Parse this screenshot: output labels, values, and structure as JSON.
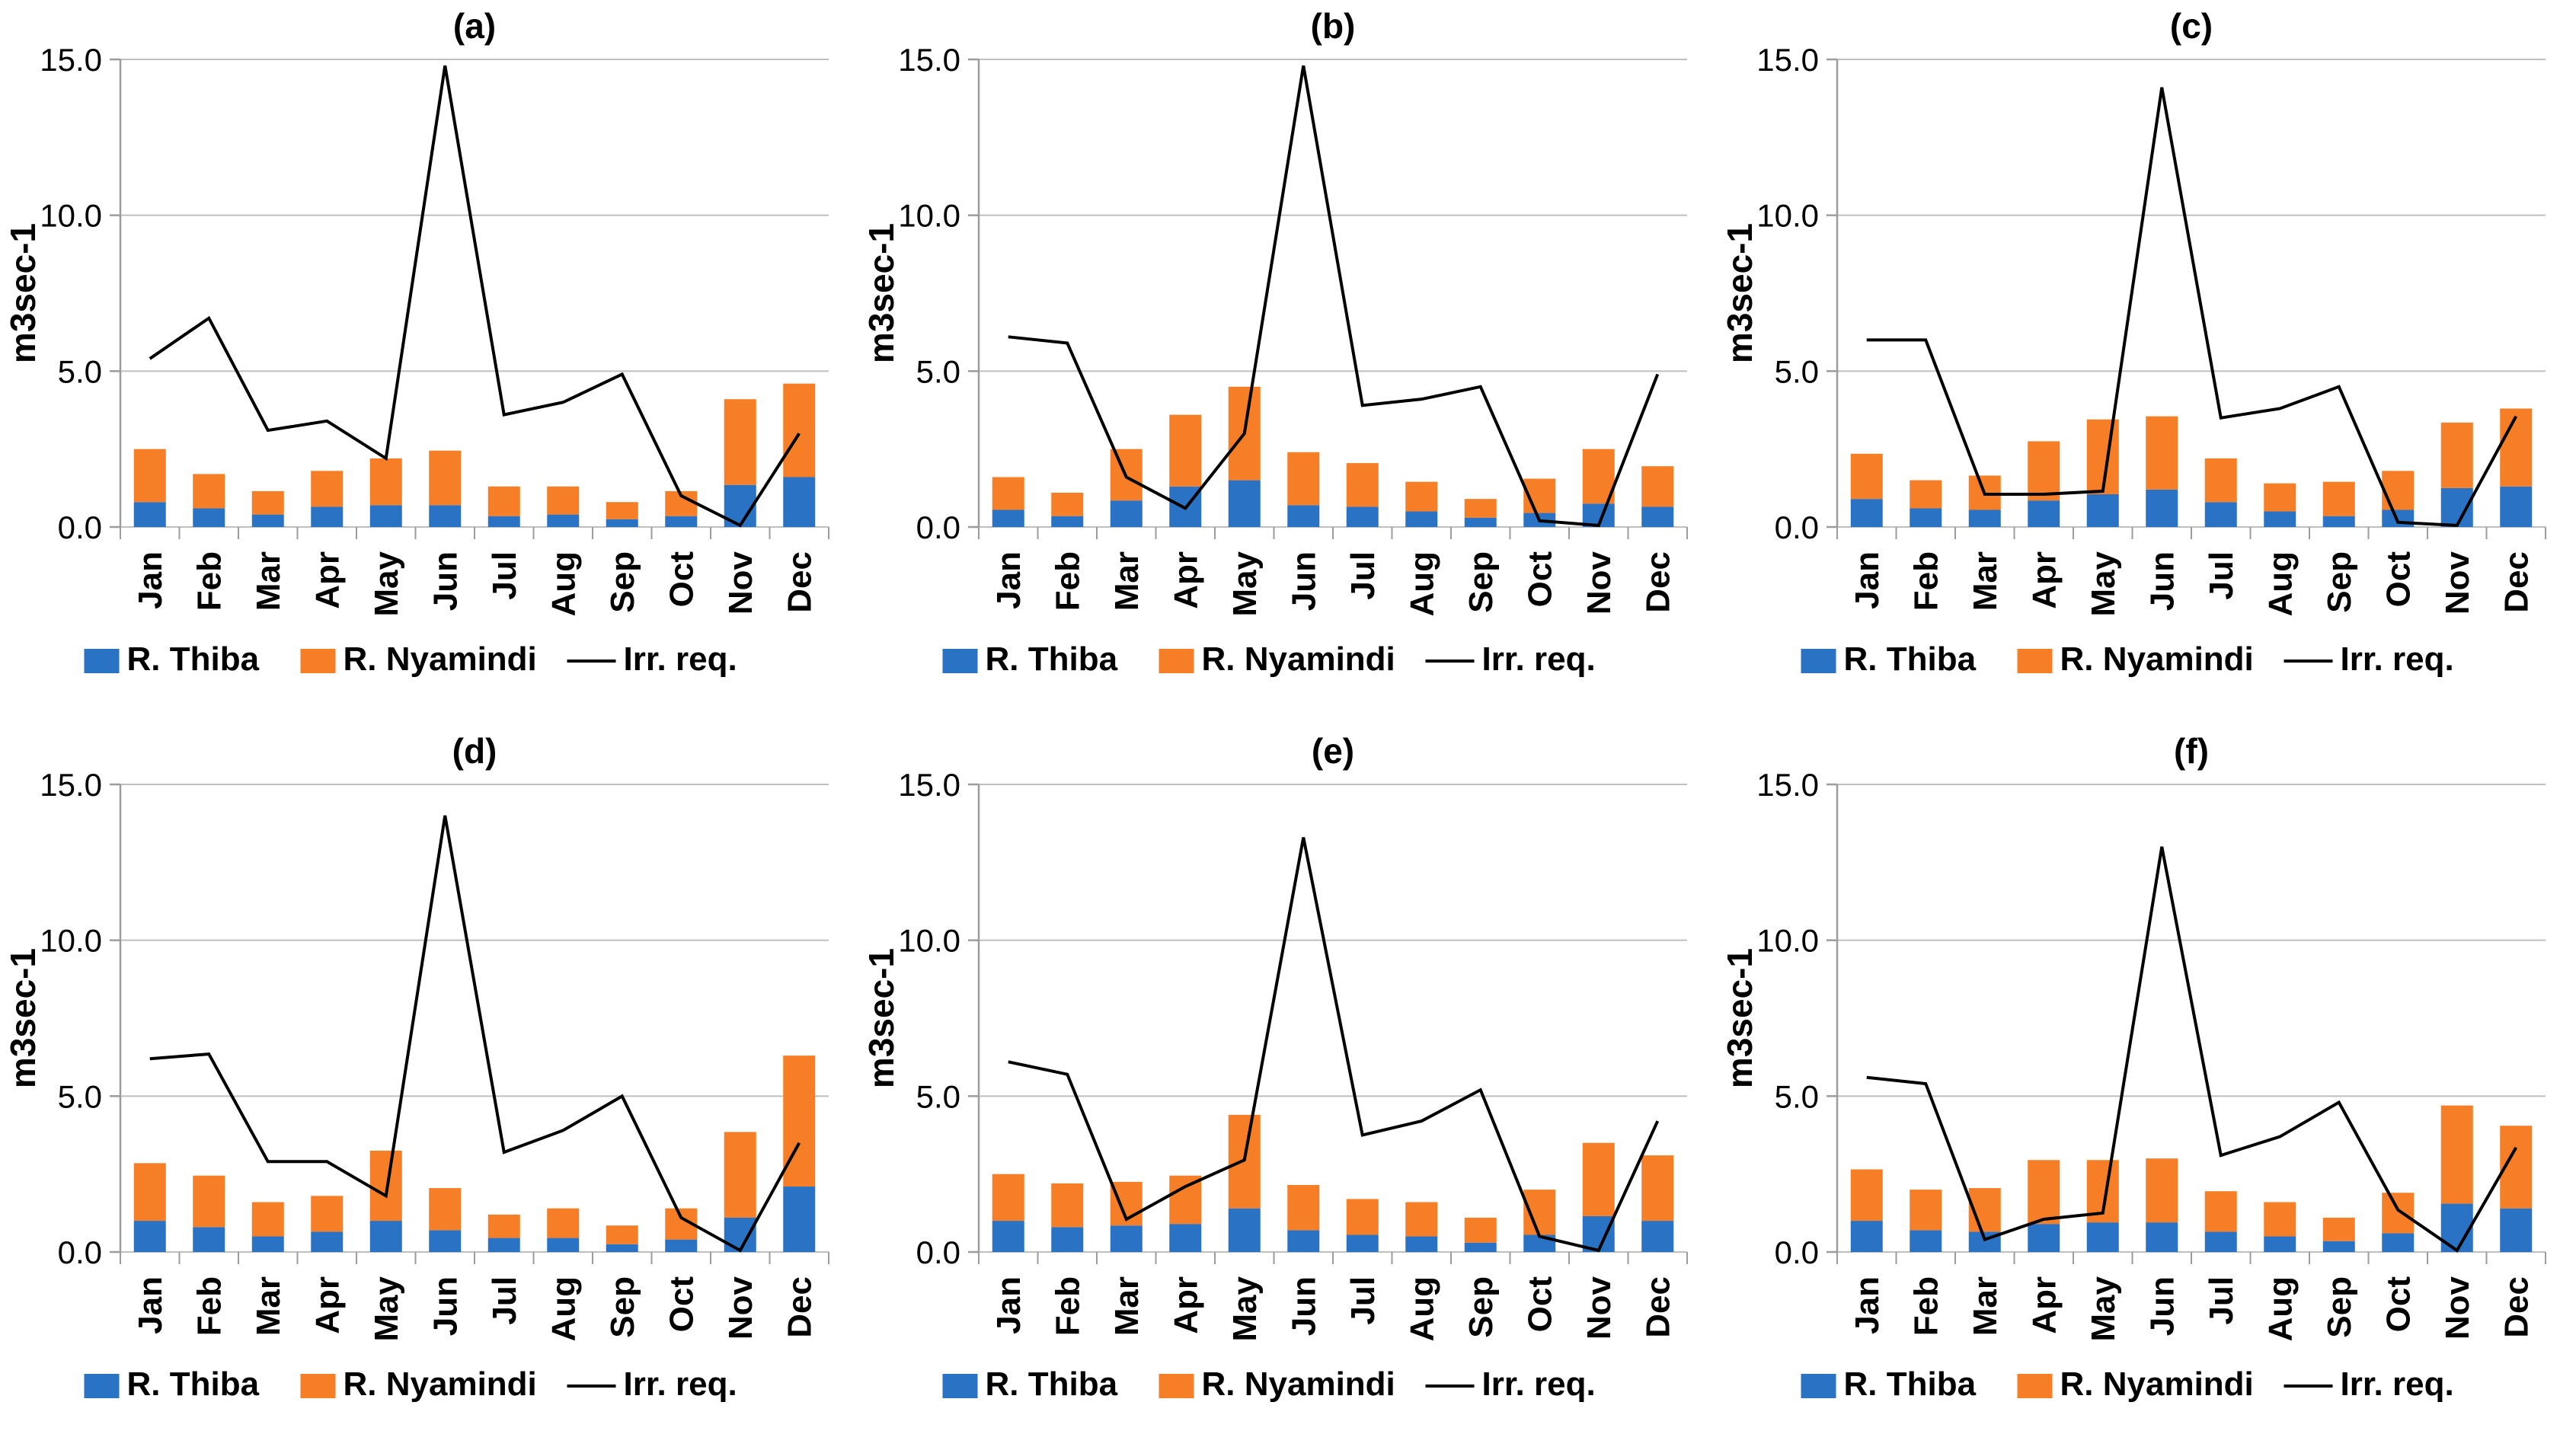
{
  "figure": {
    "background": "#ffffff",
    "ylabel": "m3sec-1",
    "y_tick_labels": [
      "0.0",
      "5.0",
      "10.0",
      "15.0"
    ],
    "y_ticks": [
      0,
      5,
      10,
      15
    ],
    "ylim": [
      0,
      15
    ],
    "categories": [
      "Jan",
      "Feb",
      "Mar",
      "Apr",
      "May",
      "Jun",
      "Jul",
      "Aug",
      "Sep",
      "Oct",
      "Nov",
      "Dec"
    ],
    "legend": {
      "thiba_label": "R. Thiba",
      "nyamindi_label": "R. Nyamindi",
      "irr_label": "Irr. req."
    },
    "colors": {
      "thiba": "#2A72C3",
      "nyamindi": "#F57E27",
      "irr_line": "#000000",
      "grid": "#BFBFBF",
      "axis": "#9c9c9c",
      "text": "#000000"
    }
  },
  "chart_data": [
    {
      "type": "bar+line",
      "title": "(a)",
      "categories": [
        "Jan",
        "Feb",
        "Mar",
        "Apr",
        "May",
        "Jun",
        "Jul",
        "Aug",
        "Sep",
        "Oct",
        "Nov",
        "Dec"
      ],
      "xlabel": "",
      "ylabel": "m3sec-1",
      "ylim": [
        0,
        15
      ],
      "grid": true,
      "legend_position": "bottom",
      "series": [
        {
          "name": "R. Thiba",
          "kind": "stacked-bar",
          "values": [
            0.8,
            0.6,
            0.4,
            0.65,
            0.7,
            0.7,
            0.35,
            0.4,
            0.25,
            0.35,
            1.35,
            1.6
          ]
        },
        {
          "name": "R. Nyamindi",
          "kind": "stacked-bar",
          "values": [
            1.7,
            1.1,
            0.75,
            1.15,
            1.5,
            1.75,
            0.95,
            0.9,
            0.55,
            0.8,
            2.75,
            3.0
          ]
        },
        {
          "name": "Irr. req.",
          "kind": "line",
          "values": [
            5.4,
            6.7,
            3.1,
            3.4,
            2.2,
            14.8,
            3.6,
            4.0,
            4.9,
            1.0,
            0.05,
            3.0
          ]
        }
      ]
    },
    {
      "type": "bar+line",
      "title": "(b)",
      "categories": [
        "Jan",
        "Feb",
        "Mar",
        "Apr",
        "May",
        "Jun",
        "Jul",
        "Aug",
        "Sep",
        "Oct",
        "Nov",
        "Dec"
      ],
      "xlabel": "",
      "ylabel": "m3sec-1",
      "ylim": [
        0,
        15
      ],
      "grid": true,
      "legend_position": "bottom",
      "series": [
        {
          "name": "R. Thiba",
          "kind": "stacked-bar",
          "values": [
            0.55,
            0.35,
            0.85,
            1.3,
            1.5,
            0.7,
            0.65,
            0.5,
            0.3,
            0.45,
            0.75,
            0.65
          ]
        },
        {
          "name": "R. Nyamindi",
          "kind": "stacked-bar",
          "values": [
            1.05,
            0.75,
            1.65,
            2.3,
            3.0,
            1.7,
            1.4,
            0.95,
            0.6,
            1.1,
            1.75,
            1.3
          ]
        },
        {
          "name": "Irr. req.",
          "kind": "line",
          "values": [
            6.1,
            5.9,
            1.6,
            0.6,
            3.0,
            14.8,
            3.9,
            4.1,
            4.5,
            0.2,
            0.05,
            4.9
          ]
        }
      ]
    },
    {
      "type": "bar+line",
      "title": "(c)",
      "categories": [
        "Jan",
        "Feb",
        "Mar",
        "Apr",
        "May",
        "Jun",
        "Jul",
        "Aug",
        "Sep",
        "Oct",
        "Nov",
        "Dec"
      ],
      "xlabel": "",
      "ylabel": "m3sec-1",
      "ylim": [
        0,
        15
      ],
      "grid": true,
      "legend_position": "bottom",
      "series": [
        {
          "name": "R. Thiba",
          "kind": "stacked-bar",
          "values": [
            0.9,
            0.6,
            0.55,
            0.85,
            1.05,
            1.2,
            0.8,
            0.5,
            0.35,
            0.55,
            1.25,
            1.3
          ]
        },
        {
          "name": "R. Nyamindi",
          "kind": "stacked-bar",
          "values": [
            1.45,
            0.9,
            1.1,
            1.9,
            2.4,
            2.35,
            1.4,
            0.9,
            1.1,
            1.25,
            2.1,
            2.5
          ]
        },
        {
          "name": "Irr. req.",
          "kind": "line",
          "values": [
            6.0,
            6.0,
            1.05,
            1.05,
            1.15,
            14.1,
            3.5,
            3.8,
            4.5,
            0.15,
            0.05,
            3.55
          ]
        }
      ]
    },
    {
      "type": "bar+line",
      "title": "(d)",
      "categories": [
        "Jan",
        "Feb",
        "Mar",
        "Apr",
        "May",
        "Jun",
        "Jul",
        "Aug",
        "Sep",
        "Oct",
        "Nov",
        "Dec"
      ],
      "xlabel": "",
      "ylabel": "m3sec-1",
      "ylim": [
        0,
        15
      ],
      "grid": true,
      "legend_position": "bottom",
      "series": [
        {
          "name": "R. Thiba",
          "kind": "stacked-bar",
          "values": [
            1.0,
            0.8,
            0.5,
            0.65,
            1.0,
            0.7,
            0.45,
            0.45,
            0.25,
            0.4,
            1.1,
            2.1
          ]
        },
        {
          "name": "R. Nyamindi",
          "kind": "stacked-bar",
          "values": [
            1.85,
            1.65,
            1.1,
            1.15,
            2.25,
            1.35,
            0.75,
            0.95,
            0.6,
            1.0,
            2.75,
            4.2
          ]
        },
        {
          "name": "Irr. req.",
          "kind": "line",
          "values": [
            6.2,
            6.35,
            2.9,
            2.9,
            1.8,
            14.0,
            3.2,
            3.9,
            5.0,
            1.1,
            0.05,
            3.5
          ]
        }
      ]
    },
    {
      "type": "bar+line",
      "title": "(e)",
      "categories": [
        "Jan",
        "Feb",
        "Mar",
        "Apr",
        "May",
        "Jun",
        "Jul",
        "Aug",
        "Sep",
        "Oct",
        "Nov",
        "Dec"
      ],
      "xlabel": "",
      "ylabel": "m3sec-1",
      "ylim": [
        0,
        15
      ],
      "grid": true,
      "legend_position": "bottom",
      "series": [
        {
          "name": "R. Thiba",
          "kind": "stacked-bar",
          "values": [
            1.0,
            0.8,
            0.85,
            0.9,
            1.4,
            0.7,
            0.55,
            0.5,
            0.3,
            0.55,
            1.15,
            1.0
          ]
        },
        {
          "name": "R. Nyamindi",
          "kind": "stacked-bar",
          "values": [
            1.5,
            1.4,
            1.4,
            1.55,
            3.0,
            1.45,
            1.15,
            1.1,
            0.8,
            1.45,
            2.35,
            2.1
          ]
        },
        {
          "name": "Irr. req.",
          "kind": "line",
          "values": [
            6.1,
            5.7,
            1.05,
            2.1,
            2.95,
            13.3,
            3.75,
            4.2,
            5.2,
            0.5,
            0.05,
            4.2
          ]
        }
      ]
    },
    {
      "type": "bar+line",
      "title": "(f)",
      "categories": [
        "Jan",
        "Feb",
        "Mar",
        "Apr",
        "May",
        "Jun",
        "Jul",
        "Aug",
        "Sep",
        "Oct",
        "Nov",
        "Dec"
      ],
      "xlabel": "",
      "ylabel": "m3sec-1",
      "ylim": [
        0,
        15
      ],
      "grid": true,
      "legend_position": "bottom",
      "series": [
        {
          "name": "R. Thiba",
          "kind": "stacked-bar",
          "values": [
            1.0,
            0.7,
            0.65,
            0.9,
            0.95,
            0.95,
            0.65,
            0.5,
            0.35,
            0.6,
            1.55,
            1.4
          ]
        },
        {
          "name": "R. Nyamindi",
          "kind": "stacked-bar",
          "values": [
            1.65,
            1.3,
            1.4,
            2.05,
            2.0,
            2.05,
            1.3,
            1.1,
            0.75,
            1.3,
            3.15,
            2.65
          ]
        },
        {
          "name": "Irr. req.",
          "kind": "line",
          "values": [
            5.6,
            5.4,
            0.4,
            1.05,
            1.25,
            13.0,
            3.1,
            3.7,
            4.8,
            1.35,
            0.05,
            3.35
          ]
        }
      ]
    }
  ]
}
